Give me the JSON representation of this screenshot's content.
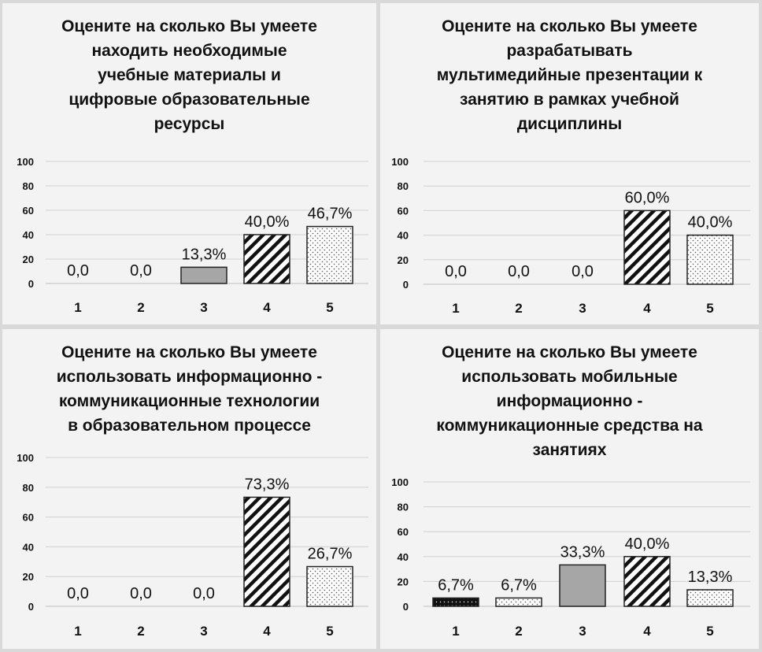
{
  "colors": {
    "panel_bg": "#f3f3f3",
    "grid": "#d0d0d0",
    "bar_gray": "#a6a6a6",
    "bar_border": "#222222"
  },
  "chart_data": [
    {
      "type": "bar",
      "title_lines": [
        "Оцените на сколько Вы умеете",
        "находить необходимые",
        "учебные материалы и",
        "цифровые образовательные",
        "ресурсы"
      ],
      "categories": [
        "1",
        "2",
        "3",
        "4",
        "5"
      ],
      "values": [
        0,
        0,
        13.3,
        40.0,
        46.7
      ],
      "data_labels": [
        "0,0",
        "0,0",
        "13,3%",
        "40,0%",
        "46,7%"
      ],
      "fills": [
        "none",
        "none",
        "gray",
        "hatch",
        "dots"
      ],
      "yticks": [
        "0",
        "20",
        "40",
        "60",
        "80",
        "100"
      ],
      "ylim": [
        0,
        100
      ],
      "grid": true,
      "legend": "none"
    },
    {
      "type": "bar",
      "title_lines": [
        "Оцените на сколько Вы умеете",
        "разрабатывать",
        "мультимедийные презентации к",
        "занятию в рамках учебной",
        "дисциплины"
      ],
      "categories": [
        "1",
        "2",
        "3",
        "4",
        "5"
      ],
      "values": [
        0,
        0,
        0,
        60.0,
        40.0
      ],
      "data_labels": [
        "0,0",
        "0,0",
        "0,0",
        "60,0%",
        "40,0%"
      ],
      "fills": [
        "none",
        "none",
        "none",
        "hatch",
        "dots"
      ],
      "yticks": [
        "0",
        "20",
        "40",
        "60",
        "80",
        "100"
      ],
      "ylim": [
        0,
        100
      ],
      "grid": true,
      "legend": "none"
    },
    {
      "type": "bar",
      "title_lines": [
        "Оцените на сколько Вы умеете",
        "использовать информационно -",
        "коммуникационные технологии",
        "в образовательном процессе"
      ],
      "categories": [
        "1",
        "2",
        "3",
        "4",
        "5"
      ],
      "values": [
        0,
        0,
        0,
        73.3,
        26.7
      ],
      "data_labels": [
        "0,0",
        "0,0",
        "0,0",
        "73,3%",
        "26,7%"
      ],
      "fills": [
        "none",
        "none",
        "none",
        "hatch",
        "dots"
      ],
      "yticks": [
        "0",
        "20",
        "40",
        "60",
        "80",
        "100"
      ],
      "ylim": [
        0,
        100
      ],
      "grid": true,
      "legend": "none"
    },
    {
      "type": "bar",
      "title_lines": [
        "Оцените на сколько Вы умеете",
        "использовать мобильные",
        "информационно -",
        "коммуникационные средства на",
        "занятиях"
      ],
      "categories": [
        "1",
        "2",
        "3",
        "4",
        "5"
      ],
      "values": [
        6.7,
        6.7,
        33.3,
        40.0,
        13.3
      ],
      "data_labels": [
        "6,7%",
        "6,7%",
        "33,3%",
        "40,0%",
        "13,3%"
      ],
      "fills": [
        "darkdots",
        "dots",
        "gray",
        "hatch",
        "dots"
      ],
      "yticks": [
        "0",
        "20",
        "40",
        "60",
        "80",
        "100"
      ],
      "ylim": [
        0,
        100
      ],
      "grid": true,
      "legend": "none"
    }
  ]
}
